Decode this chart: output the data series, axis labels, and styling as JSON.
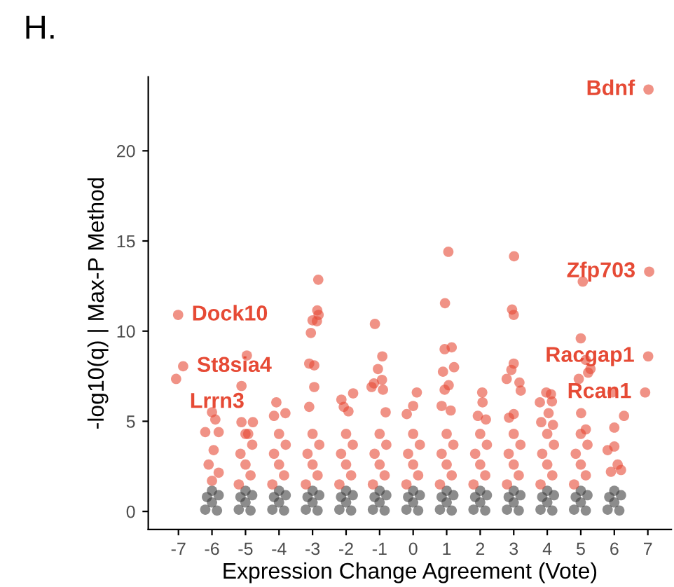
{
  "chart_data": {
    "type": "scatter",
    "title": "H.",
    "xlabel": "Expression Change Agreement (Vote)",
    "ylabel": "-log10(q) | Max-P Method",
    "xlim": [
      -7.9,
      7.7
    ],
    "ylim": [
      -1,
      24.1
    ],
    "xticks": [
      -7,
      -6,
      -5,
      -4,
      -3,
      -2,
      -1,
      0,
      1,
      2,
      3,
      4,
      5,
      6,
      7
    ],
    "yticks": [
      0,
      5,
      10,
      15,
      20
    ],
    "grid": false,
    "legend": false,
    "marker": "circle",
    "series": [
      {
        "color": "#3f3f3f",
        "x": [
          -6.2,
          -5.85,
          -6.0,
          -6.15,
          -5.8,
          -6.0,
          -5.2,
          -4.85,
          -5.0,
          -5.15,
          -4.8,
          -5.0,
          -4.2,
          -3.85,
          -4.0,
          -4.15,
          -3.8,
          -4.0,
          -3.2,
          -2.85,
          -3.0,
          -3.15,
          -2.8,
          -3.0,
          -2.2,
          -1.85,
          -2.0,
          -2.15,
          -1.8,
          -2.0,
          -1.2,
          -0.85,
          -1.0,
          -1.15,
          -0.8,
          -1.0,
          -0.2,
          0.15,
          0.0,
          -0.15,
          0.2,
          0.0,
          0.8,
          1.15,
          1.0,
          0.85,
          1.2,
          1.0,
          1.8,
          2.15,
          2.0,
          1.85,
          2.2,
          2.0,
          2.8,
          3.15,
          3.0,
          2.85,
          3.2,
          3.0,
          3.8,
          4.15,
          4.0,
          3.85,
          4.2,
          4.0,
          4.8,
          5.15,
          5.0,
          4.85,
          5.2,
          5.0,
          5.8,
          6.15,
          6.0,
          5.85,
          6.2,
          6.0
        ],
        "values": [
          0.1,
          0.05,
          0.5,
          0.8,
          0.9,
          1.15,
          0.1,
          0.05,
          0.5,
          0.8,
          0.9,
          1.15,
          0.1,
          0.05,
          0.5,
          0.8,
          0.9,
          1.15,
          0.1,
          0.05,
          0.5,
          0.8,
          0.9,
          1.15,
          0.1,
          0.05,
          0.5,
          0.8,
          0.9,
          1.15,
          0.1,
          0.05,
          0.5,
          0.8,
          0.9,
          1.15,
          0.1,
          0.05,
          0.5,
          0.8,
          0.9,
          1.15,
          0.1,
          0.05,
          0.5,
          0.8,
          0.9,
          1.15,
          0.1,
          0.05,
          0.5,
          0.8,
          0.9,
          1.15,
          0.1,
          0.05,
          0.5,
          0.8,
          0.9,
          1.15,
          0.1,
          0.05,
          0.5,
          0.8,
          0.9,
          1.15,
          0.1,
          0.05,
          0.5,
          0.8,
          0.9,
          1.15,
          0.1,
          0.05,
          0.5,
          0.8,
          0.9,
          1.15
        ]
      },
      {
        "color": "#e64a35",
        "x": [
          -5.2,
          -4.85,
          -5.0,
          -5.15,
          -4.8,
          -5.0,
          -4.2,
          -3.85,
          -4.0,
          -4.15,
          -3.8,
          -4.0,
          -3.2,
          -2.85,
          -3.0,
          -3.15,
          -2.8,
          -3.0,
          -2.2,
          -1.85,
          -2.0,
          -2.15,
          -1.8,
          -2.0,
          -1.2,
          -0.85,
          -1.0,
          -1.15,
          -0.8,
          -1.0,
          -0.2,
          0.15,
          0.0,
          -0.15,
          0.2,
          0.0,
          0.8,
          1.15,
          1.0,
          0.85,
          1.2,
          1.0,
          1.8,
          2.15,
          2.0,
          1.85,
          2.2,
          2.0,
          2.8,
          3.15,
          3.0,
          2.85,
          3.2,
          3.0,
          3.8,
          4.15,
          4.0,
          3.85,
          4.2,
          4.0,
          4.8,
          5.15,
          5.0,
          4.85,
          5.2,
          5.0,
          5.8,
          6.1,
          5.9,
          6.2,
          6.0,
          -6.86,
          -7.07,
          -4.96,
          -5.12,
          -6.0,
          -5.9,
          -6.2,
          -5.8,
          -5.95,
          -6.1,
          -5.8,
          -6.0,
          -3.0,
          -3.05,
          -3.1,
          -2.95,
          -2.95,
          -3.1,
          -2.83,
          -2.86,
          -2.82,
          -2.87,
          -1.14,
          1.05,
          0.95,
          3.01,
          2.95,
          3.0,
          5.06,
          7.04,
          7.02,
          -7.01,
          5.0,
          -0.92,
          -1.05,
          -0.93,
          -1.17,
          -0.9,
          -1.24,
          -0.82,
          0.11,
          0.0,
          -0.19,
          0.94,
          1.15,
          1.22,
          0.89,
          1.06,
          0.94,
          0.85,
          1.12,
          2.06,
          2.07,
          1.93,
          2.17,
          3.0,
          2.93,
          2.79,
          3.17,
          3.21,
          2.86,
          3.0,
          3.97,
          4.11,
          3.78,
          4.14,
          4.04,
          4.17,
          3.82,
          5.15,
          5.29,
          5.22,
          4.94,
          5.01,
          5.15,
          5.94,
          6.29,
          6.0,
          7.01,
          6.92,
          -4.08,
          -3.81,
          -4.15,
          -2.14,
          -1.79,
          -2.07,
          -1.93,
          -5.12,
          -4.78,
          -4.92
        ],
        "values": [
          1.5,
          2.0,
          2.6,
          3.2,
          3.7,
          4.3,
          1.5,
          2.0,
          2.6,
          3.2,
          3.7,
          4.3,
          1.5,
          2.0,
          2.6,
          3.2,
          3.7,
          4.3,
          1.5,
          2.0,
          2.6,
          3.2,
          3.7,
          4.3,
          1.5,
          2.0,
          2.6,
          3.2,
          3.7,
          4.3,
          1.5,
          2.0,
          2.6,
          3.2,
          3.7,
          4.3,
          1.5,
          2.0,
          2.6,
          3.2,
          3.7,
          4.3,
          1.5,
          2.0,
          2.6,
          3.2,
          3.7,
          4.3,
          1.5,
          2.0,
          2.6,
          3.2,
          3.7,
          4.3,
          1.5,
          2.0,
          2.6,
          3.2,
          3.7,
          4.3,
          1.5,
          2.0,
          2.6,
          3.2,
          3.7,
          4.3,
          3.4,
          2.6,
          2.2,
          2.3,
          3.6,
          8.05,
          7.35,
          8.65,
          6.96,
          5.5,
          5.1,
          4.4,
          4.4,
          3.4,
          2.6,
          2.15,
          1.7,
          10.6,
          9.9,
          8.2,
          8.1,
          6.9,
          5.8,
          12.85,
          11.15,
          10.9,
          10.55,
          10.4,
          14.4,
          11.55,
          14.15,
          11.2,
          10.9,
          12.75,
          13.3,
          23.4,
          10.9,
          9.6,
          8.6,
          7.9,
          7.3,
          7.1,
          6.75,
          6.9,
          5.5,
          6.6,
          5.85,
          5.4,
          9.0,
          9.1,
          8.0,
          7.75,
          7.0,
          6.75,
          5.85,
          5.6,
          6.6,
          6.05,
          5.3,
          5.1,
          8.2,
          7.85,
          7.35,
          7.15,
          6.7,
          5.2,
          5.4,
          6.6,
          6.5,
          6.05,
          6.1,
          5.45,
          4.8,
          4.95,
          8.4,
          7.9,
          7.7,
          7.35,
          5.45,
          4.55,
          6.6,
          5.3,
          4.65,
          8.6,
          6.6,
          6.05,
          5.45,
          5.3,
          6.2,
          6.55,
          5.8,
          5.55,
          4.95,
          4.95,
          4.3
        ]
      }
    ],
    "annotations": [
      {
        "text": "Bdnf",
        "x": 7.02,
        "y": 23.4
      },
      {
        "text": "Zfp703",
        "x": 7.04,
        "y": 13.3
      },
      {
        "text": "Dock10",
        "x": -7.01,
        "y": 10.9
      },
      {
        "text": "St8sia4",
        "x": -6.86,
        "y": 8.05
      },
      {
        "text": "Racgap1",
        "x": 7.01,
        "y": 8.6
      },
      {
        "text": "Lrrn3",
        "x": -7.07,
        "y": 7.35
      },
      {
        "text": "Rcan1",
        "x": 6.92,
        "y": 6.6
      }
    ]
  }
}
